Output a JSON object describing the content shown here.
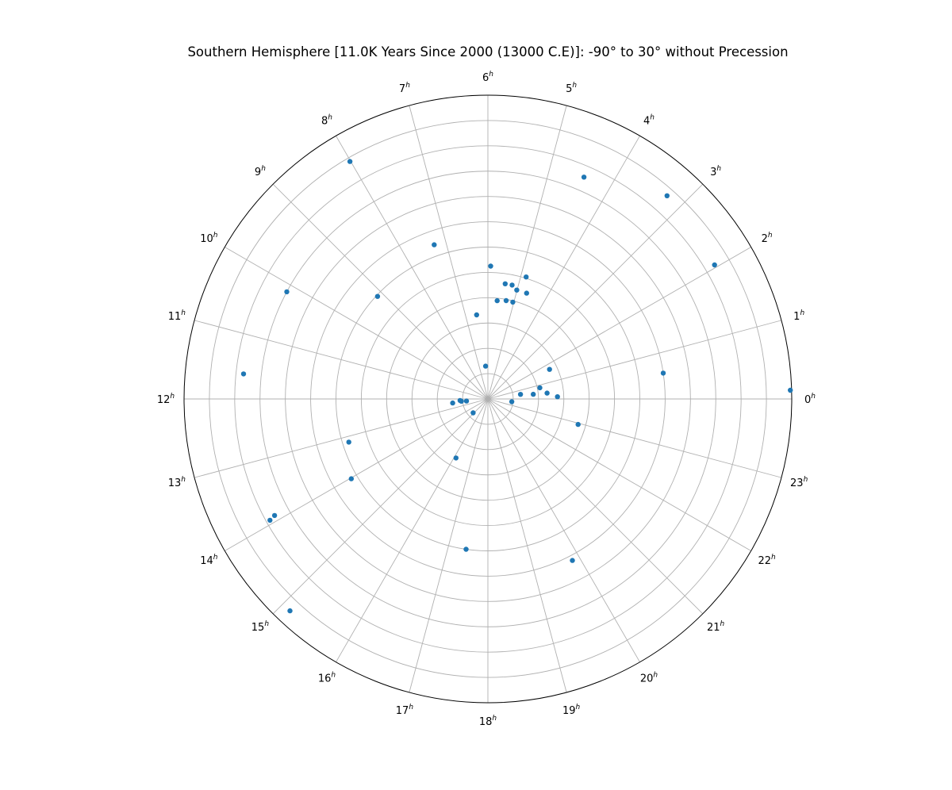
{
  "chart_data": {
    "type": "scatter",
    "projection": "polar",
    "title": "Southern Hemisphere [11.0K Years Since 2000 (13000 C.E)]: -90° to 30° without Precession",
    "angular_ticks": [
      {
        "main": "0",
        "sup": "h"
      },
      {
        "main": "1",
        "sup": "h"
      },
      {
        "main": "2",
        "sup": "h"
      },
      {
        "main": "3",
        "sup": "h"
      },
      {
        "main": "4",
        "sup": "h"
      },
      {
        "main": "5",
        "sup": "h"
      },
      {
        "main": "6",
        "sup": "h"
      },
      {
        "main": "7",
        "sup": "h"
      },
      {
        "main": "8",
        "sup": "h"
      },
      {
        "main": "9",
        "sup": "h"
      },
      {
        "main": "10",
        "sup": "h"
      },
      {
        "main": "11",
        "sup": "h"
      },
      {
        "main": "12",
        "sup": "h"
      },
      {
        "main": "13",
        "sup": "h"
      },
      {
        "main": "14",
        "sup": "h"
      },
      {
        "main": "15",
        "sup": "h"
      },
      {
        "main": "16",
        "sup": "h"
      },
      {
        "main": "17",
        "sup": "h"
      },
      {
        "main": "18",
        "sup": "h"
      },
      {
        "main": "19",
        "sup": "h"
      },
      {
        "main": "20",
        "sup": "h"
      },
      {
        "main": "21",
        "sup": "h"
      },
      {
        "main": "22",
        "sup": "h"
      },
      {
        "main": "23",
        "sup": "h"
      }
    ],
    "ra_unit": "hours",
    "dec_range": [
      -90,
      30
    ],
    "radial_gridlines_dec": [
      -80,
      -70,
      -60,
      -50,
      -40,
      -30,
      -20,
      -10,
      0,
      10,
      20
    ],
    "grid": true,
    "marker_color": "#1f77b4",
    "points": [
      {
        "ra": 0.11,
        "dec": 29.5
      },
      {
        "ra": 0.56,
        "dec": -20.0
      },
      {
        "ra": 0.12,
        "dec": -62.5
      },
      {
        "ra": 0.38,
        "dec": -66.5
      },
      {
        "ra": 0.39,
        "dec": -72.0
      },
      {
        "ra": 0.81,
        "dec": -69.0
      },
      {
        "ra": 0.54,
        "dec": -77.0
      },
      {
        "ra": 23.56,
        "dec": -80.5
      },
      {
        "ra": 1.71,
        "dec": -63.0
      },
      {
        "ra": 22.95,
        "dec": -53.0
      },
      {
        "ra": 2.04,
        "dec": 14.0
      },
      {
        "ra": 3.24,
        "dec": 17.0
      },
      {
        "ra": 4.44,
        "dec": 5.5
      },
      {
        "ra": 4.66,
        "dec": -45.5
      },
      {
        "ra": 4.84,
        "dec": -39.5
      },
      {
        "ra": 5.01,
        "dec": -45.5
      },
      {
        "ra": 5.04,
        "dec": -50.5
      },
      {
        "ra": 5.2,
        "dec": -44.0
      },
      {
        "ra": 5.43,
        "dec": -44.0
      },
      {
        "ra": 5.3,
        "dec": -50.5
      },
      {
        "ra": 5.64,
        "dec": -51.0
      },
      {
        "ra": 5.92,
        "dec": -37.5
      },
      {
        "ra": 6.51,
        "dec": -56.5
      },
      {
        "ra": 6.27,
        "dec": -77.0
      },
      {
        "ra": 7.28,
        "dec": -25.5
      },
      {
        "ra": 8.01,
        "dec": 18.5
      },
      {
        "ra": 9.14,
        "dec": -30.5
      },
      {
        "ra": 10.13,
        "dec": 0.0
      },
      {
        "ra": 11.61,
        "dec": 7.0
      },
      {
        "ra": 12.44,
        "dec": -76.0
      },
      {
        "ra": 12.21,
        "dec": -79.0
      },
      {
        "ra": 12.36,
        "dec": -81.5
      },
      {
        "ra": 12.32,
        "dec": -79.5
      },
      {
        "ra": 13.15,
        "dec": -32.5
      },
      {
        "ra": 13.91,
        "dec": 6.0
      },
      {
        "ra": 13.94,
        "dec": 8.5
      },
      {
        "ra": 14.02,
        "dec": -27.5
      },
      {
        "ra": 15.13,
        "dec": 24.5
      },
      {
        "ra": 14.88,
        "dec": -82.0
      },
      {
        "ra": 16.11,
        "dec": -63.5
      },
      {
        "ra": 17.45,
        "dec": -30.0
      },
      {
        "ra": 19.84,
        "dec": -18.0
      }
    ]
  }
}
